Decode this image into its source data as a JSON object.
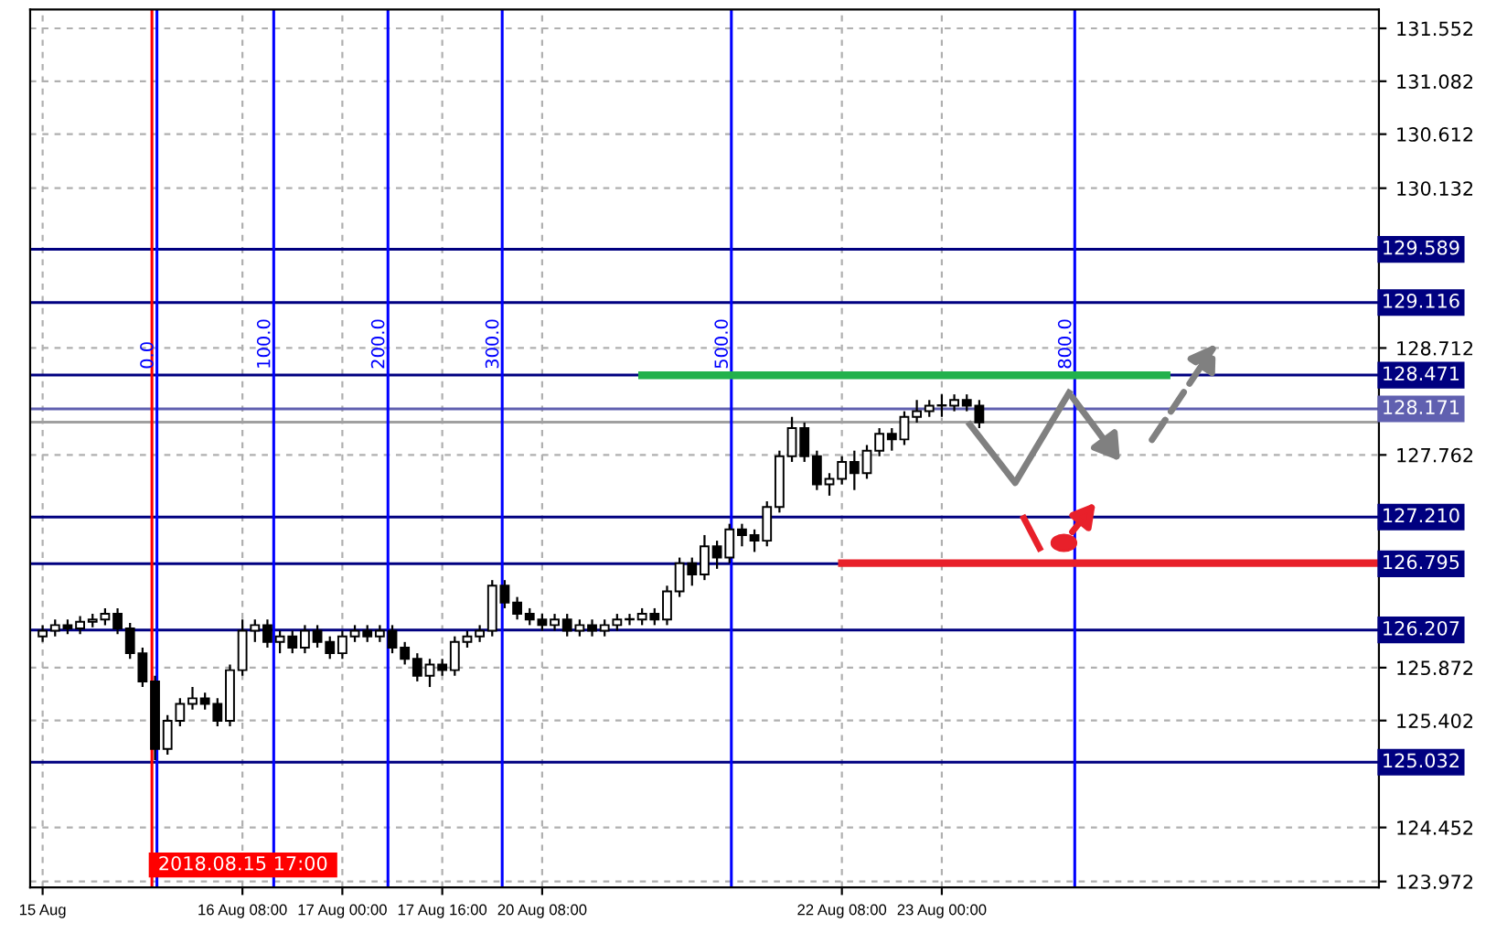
{
  "chart_data": {
    "type": "candlestick",
    "categories": [
      "15 Aug",
      null,
      null,
      null,
      null,
      null,
      null,
      null,
      null,
      null,
      null,
      null,
      null,
      null,
      null,
      null,
      "16 Aug 08:00",
      null,
      null,
      null,
      null,
      null,
      null,
      null,
      "17 Aug 00:00",
      null,
      null,
      null,
      null,
      null,
      null,
      null,
      "17 Aug 16:00",
      null,
      null,
      null,
      null,
      null,
      null,
      null,
      "20 Aug 08:00",
      null,
      null,
      null,
      null,
      null,
      null,
      null,
      null,
      null,
      null,
      null,
      null,
      null,
      null,
      null,
      null,
      null,
      null,
      null,
      null,
      null,
      null,
      null,
      "22 Aug 08:00",
      null,
      null,
      null,
      null,
      null,
      null,
      null,
      "23 Aug 00:00",
      null,
      null,
      null,
      null,
      null,
      null,
      null,
      null,
      null,
      null,
      null,
      null,
      null,
      null,
      null,
      null,
      null,
      null,
      null,
      null,
      null,
      null,
      null,
      null,
      null,
      null,
      null,
      null,
      null,
      null,
      null,
      null,
      null,
      null,
      null
    ],
    "ohlc": [
      [
        126.15,
        126.25,
        126.1,
        126.2
      ],
      [
        126.2,
        126.3,
        126.15,
        126.25
      ],
      [
        126.25,
        126.3,
        126.17,
        126.22
      ],
      [
        126.22,
        126.33,
        126.17,
        126.28
      ],
      [
        126.28,
        126.35,
        126.23,
        126.3
      ],
      [
        126.3,
        126.4,
        126.25,
        126.35
      ],
      [
        126.35,
        126.4,
        126.17,
        126.22
      ],
      [
        126.22,
        126.27,
        125.95,
        126.0
      ],
      [
        126.0,
        126.05,
        125.7,
        125.75
      ],
      [
        125.75,
        125.8,
        125.05,
        125.15
      ],
      [
        125.15,
        125.45,
        125.1,
        125.4
      ],
      [
        125.4,
        125.6,
        125.35,
        125.55
      ],
      [
        125.55,
        125.7,
        125.5,
        125.6
      ],
      [
        125.6,
        125.65,
        125.5,
        125.55
      ],
      [
        125.55,
        125.6,
        125.35,
        125.4
      ],
      [
        125.4,
        125.9,
        125.35,
        125.85
      ],
      [
        125.85,
        126.3,
        125.8,
        126.2
      ],
      [
        126.2,
        126.3,
        126.1,
        126.25
      ],
      [
        126.25,
        126.3,
        126.05,
        126.1
      ],
      [
        126.1,
        126.2,
        126.0,
        126.15
      ],
      [
        126.15,
        126.2,
        126.0,
        126.05
      ],
      [
        126.05,
        126.25,
        126.0,
        126.2
      ],
      [
        126.2,
        126.25,
        126.05,
        126.1
      ],
      [
        126.1,
        126.15,
        125.95,
        126.0
      ],
      [
        126.0,
        126.2,
        125.95,
        126.15
      ],
      [
        126.15,
        126.25,
        126.1,
        126.2
      ],
      [
        126.2,
        126.25,
        126.1,
        126.15
      ],
      [
        126.15,
        126.25,
        126.1,
        126.2
      ],
      [
        126.2,
        126.25,
        126.0,
        126.05
      ],
      [
        126.05,
        126.1,
        125.9,
        125.95
      ],
      [
        125.95,
        126.0,
        125.75,
        125.8
      ],
      [
        125.8,
        125.95,
        125.7,
        125.9
      ],
      [
        125.9,
        125.95,
        125.8,
        125.85
      ],
      [
        125.85,
        126.15,
        125.8,
        126.1
      ],
      [
        126.1,
        126.2,
        126.05,
        126.15
      ],
      [
        126.15,
        126.25,
        126.1,
        126.2
      ],
      [
        126.2,
        126.65,
        126.15,
        126.6
      ],
      [
        126.6,
        126.65,
        126.4,
        126.45
      ],
      [
        126.45,
        126.5,
        126.3,
        126.35
      ],
      [
        126.35,
        126.4,
        126.25,
        126.3
      ],
      [
        126.3,
        126.35,
        126.2,
        126.25
      ],
      [
        126.25,
        126.35,
        126.2,
        126.3
      ],
      [
        126.3,
        126.35,
        126.15,
        126.2
      ],
      [
        126.2,
        126.3,
        126.15,
        126.25
      ],
      [
        126.25,
        126.3,
        126.15,
        126.2
      ],
      [
        126.2,
        126.3,
        126.15,
        126.25
      ],
      [
        126.25,
        126.35,
        126.2,
        126.3
      ],
      [
        126.3,
        126.35,
        126.25,
        126.3
      ],
      [
        126.3,
        126.4,
        126.25,
        126.35
      ],
      [
        126.35,
        126.4,
        126.25,
        126.3
      ],
      [
        126.3,
        126.6,
        126.25,
        126.55
      ],
      [
        126.55,
        126.85,
        126.5,
        126.8
      ],
      [
        126.8,
        126.85,
        126.6,
        126.7
      ],
      [
        126.7,
        127.05,
        126.65,
        126.95
      ],
      [
        126.95,
        127.0,
        126.75,
        126.85
      ],
      [
        126.85,
        127.15,
        126.8,
        127.1
      ],
      [
        127.1,
        127.15,
        126.95,
        127.05
      ],
      [
        127.05,
        127.1,
        126.9,
        127.0
      ],
      [
        127.0,
        127.35,
        126.95,
        127.3
      ],
      [
        127.3,
        127.8,
        127.25,
        127.75
      ],
      [
        127.75,
        128.1,
        127.7,
        128.0
      ],
      [
        128.0,
        128.05,
        127.7,
        127.75
      ],
      [
        127.75,
        127.8,
        127.45,
        127.5
      ],
      [
        127.5,
        127.6,
        127.4,
        127.55
      ],
      [
        127.55,
        127.75,
        127.5,
        127.7
      ],
      [
        127.7,
        127.8,
        127.45,
        127.6
      ],
      [
        127.6,
        127.85,
        127.55,
        127.8
      ],
      [
        127.8,
        128.0,
        127.75,
        127.95
      ],
      [
        127.95,
        128.0,
        127.8,
        127.9
      ],
      [
        127.9,
        128.15,
        127.85,
        128.1
      ],
      [
        128.1,
        128.25,
        128.05,
        128.15
      ],
      [
        128.15,
        128.25,
        128.1,
        128.2
      ],
      [
        128.2,
        128.3,
        128.1,
        128.2
      ],
      [
        128.2,
        128.3,
        128.15,
        128.25
      ],
      [
        128.25,
        128.3,
        128.15,
        128.2
      ],
      [
        128.2,
        128.25,
        128.0,
        128.05
      ],
      null,
      null,
      null,
      null,
      null,
      null,
      null,
      null,
      null,
      null,
      null,
      null,
      null,
      null,
      null,
      null,
      null,
      null,
      null,
      null,
      null,
      null,
      null,
      null,
      null,
      null,
      null,
      null,
      null,
      null,
      null,
      null
    ],
    "series": [
      {
        "type": "line",
        "color": "#22b14c",
        "values": [
          null,
          null,
          null,
          null,
          null,
          null,
          null,
          null,
          null,
          null,
          null,
          null,
          null,
          null,
          null,
          null,
          null,
          null,
          null,
          null,
          null,
          null,
          null,
          null,
          null,
          null,
          null,
          null,
          null,
          null,
          null,
          null,
          null,
          null,
          null,
          null,
          null,
          null,
          null,
          null,
          null,
          null,
          null,
          null,
          null,
          null,
          null,
          null,
          128.47,
          128.47,
          128.47,
          128.47,
          128.47,
          128.47,
          128.47,
          128.47,
          128.47,
          128.47,
          128.47,
          128.47,
          128.47,
          128.47,
          128.47,
          128.47,
          128.47,
          128.47,
          128.47,
          128.47,
          128.47,
          128.47,
          128.47,
          128.47,
          128.47,
          128.47,
          128.47,
          128.47,
          128.47,
          128.47,
          128.47,
          128.47,
          128.47,
          128.47,
          128.47,
          128.47,
          128.47,
          128.47,
          128.47,
          128.47,
          128.47,
          128.47,
          128.47,
          null,
          null,
          null,
          null,
          null,
          null,
          null,
          null,
          null,
          null,
          null,
          null,
          null,
          null,
          null,
          null,
          null
        ]
      },
      {
        "type": "line",
        "color": "#e8202a",
        "values": [
          null,
          null,
          null,
          null,
          null,
          null,
          null,
          null,
          null,
          null,
          null,
          null,
          null,
          null,
          null,
          null,
          null,
          null,
          null,
          null,
          null,
          null,
          null,
          null,
          null,
          null,
          null,
          null,
          null,
          null,
          null,
          null,
          null,
          null,
          null,
          null,
          null,
          null,
          null,
          null,
          null,
          null,
          null,
          null,
          null,
          null,
          null,
          null,
          null,
          null,
          null,
          null,
          null,
          null,
          null,
          null,
          null,
          null,
          null,
          null,
          null,
          null,
          null,
          null,
          126.8,
          126.8,
          126.8,
          126.8,
          126.8,
          126.8,
          126.8,
          126.8,
          126.8,
          126.8,
          126.8,
          126.8,
          126.8,
          126.8,
          126.8,
          126.8,
          126.8,
          126.8,
          126.8,
          126.8,
          126.8,
          126.8,
          126.8,
          126.8,
          126.8,
          126.8,
          126.8,
          126.8,
          126.8,
          126.8,
          126.8,
          126.8,
          126.8,
          126.8,
          126.8,
          126.8,
          126.8,
          126.8,
          126.8,
          126.8,
          126.8,
          126.8,
          126.8,
          126.8
        ]
      }
    ],
    "ylim": [
      123.92,
      131.72
    ],
    "yticks": [
      123.972,
      124.452,
      125.402,
      125.872,
      127.762,
      128.712,
      130.132,
      130.612,
      131.082,
      131.552
    ],
    "grid": true,
    "ref_lines": [
      {
        "axis": "y",
        "value": 129.589,
        "label": "129.589",
        "color": "#000080"
      },
      {
        "axis": "y",
        "value": 129.116,
        "label": "129.116",
        "color": "#000080"
      },
      {
        "axis": "y",
        "value": 128.471,
        "label": "128.471",
        "color": "#000080"
      },
      {
        "axis": "y",
        "value": 128.171,
        "label": "128.171",
        "color": "#6060b0"
      },
      {
        "axis": "y",
        "value": 128.054,
        "color": "#a0a0a0"
      },
      {
        "axis": "y",
        "value": 127.21,
        "label": "127.210",
        "color": "#000080"
      },
      {
        "axis": "y",
        "value": 126.795,
        "label": "126.795",
        "color": "#000080"
      },
      {
        "axis": "y",
        "value": 126.207,
        "label": "126.207",
        "color": "#000080"
      },
      {
        "axis": "y",
        "value": 125.032,
        "label": "125.032",
        "color": "#000080"
      }
    ],
    "annotations": [
      "2018.08.15 17:00",
      "0.0",
      "100.0",
      "200.0",
      "300.0",
      "500.0",
      "800.0"
    ]
  }
}
